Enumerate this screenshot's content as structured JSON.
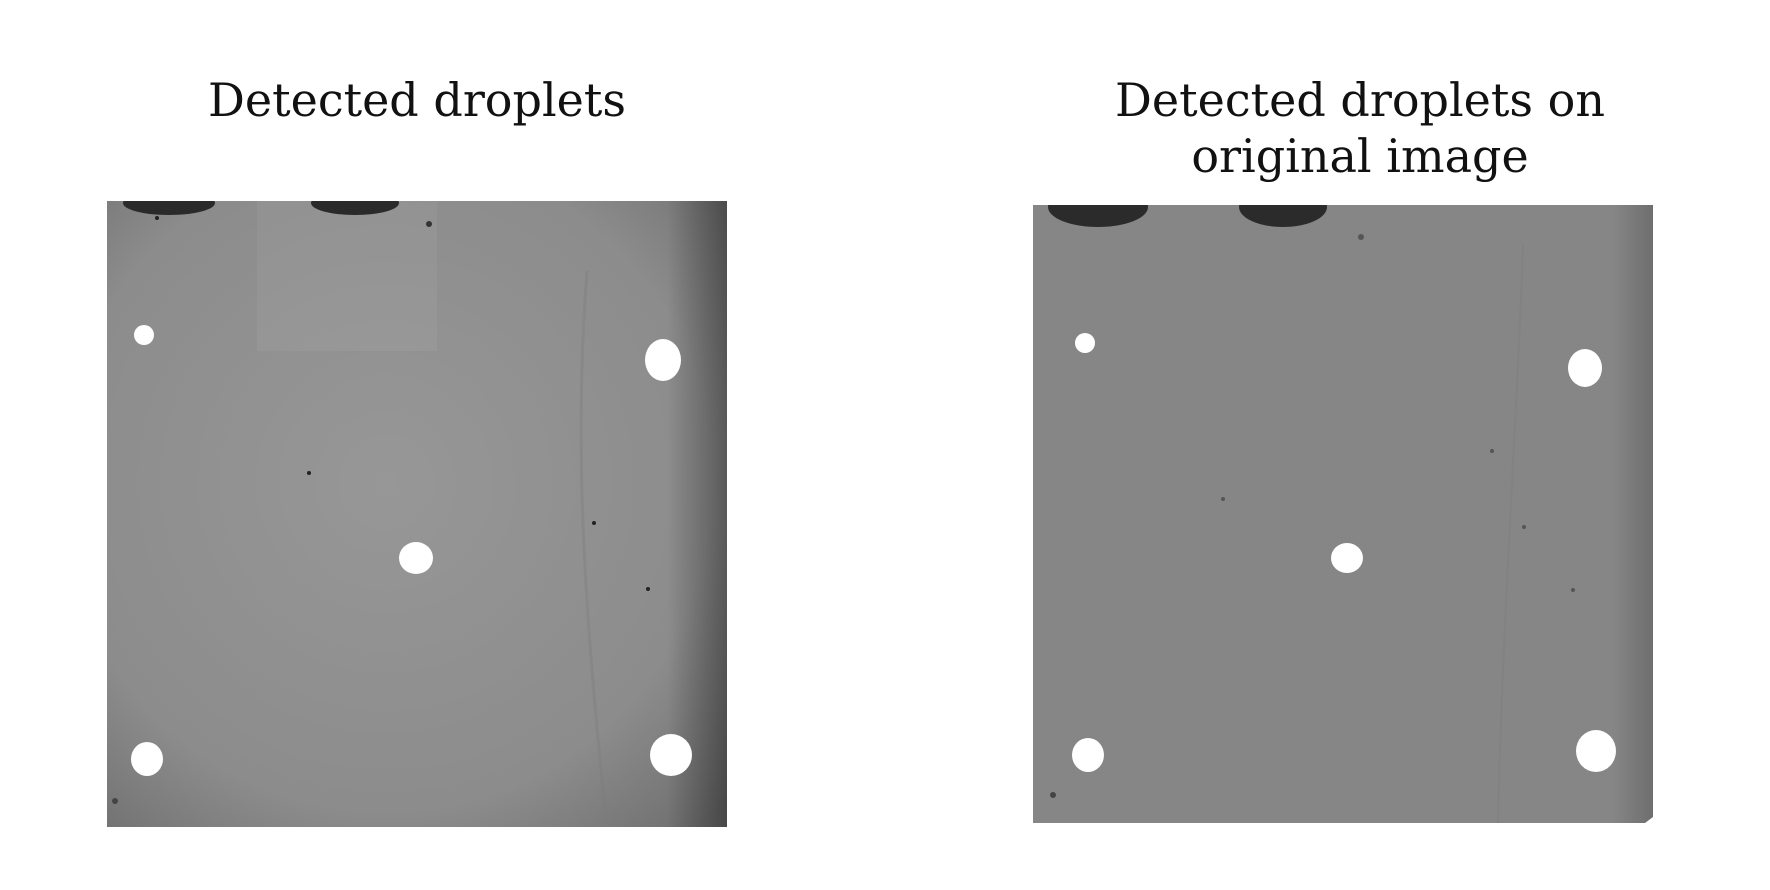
{
  "panels": [
    {
      "title": "Detected droplets",
      "background": "#8f8f8f",
      "border_shadow": "#5a5a5a",
      "droplet_color": "#ffffff"
    },
    {
      "title": "Detected droplets on\noriginal image",
      "background": "#858585",
      "border_shadow": "#5f5f5f",
      "droplet_color": "#ffffff"
    }
  ],
  "droplets": [
    {
      "id": "top-left-small"
    },
    {
      "id": "top-right"
    },
    {
      "id": "center"
    },
    {
      "id": "bottom-left"
    },
    {
      "id": "bottom-right"
    }
  ]
}
